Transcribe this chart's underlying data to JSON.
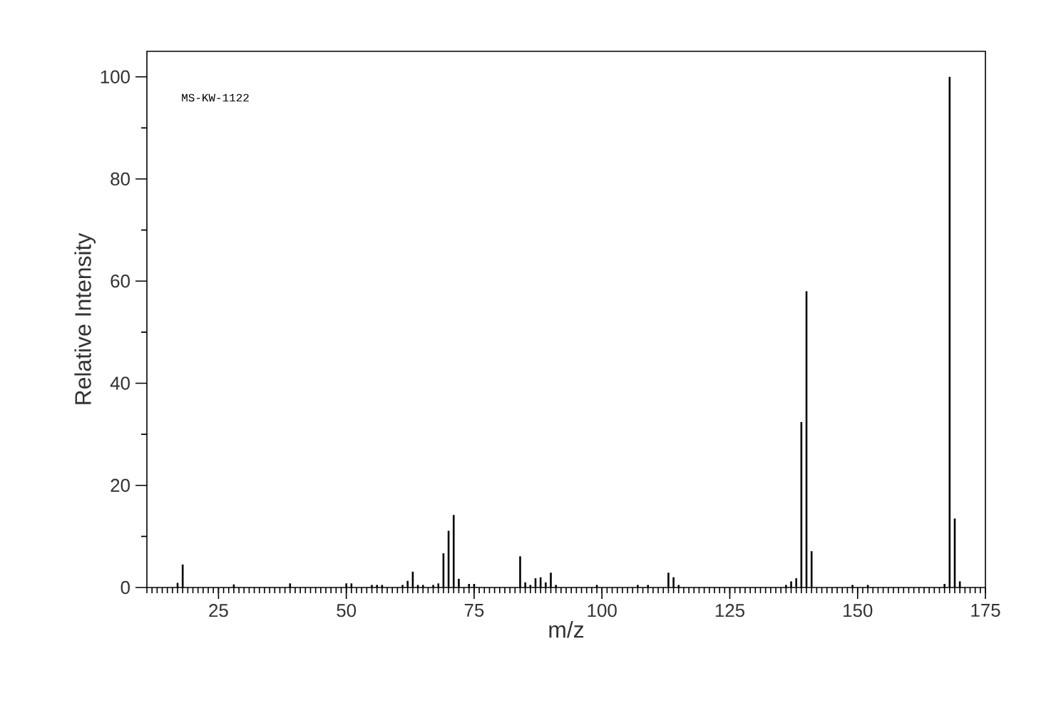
{
  "chart_data": {
    "type": "bar",
    "xlabel": "m/z",
    "ylabel": "Relative Intensity",
    "annotations": [
      "MS-KW-1122"
    ],
    "color": "#000000",
    "x": [
      17,
      18,
      28,
      39,
      50,
      51,
      55,
      56,
      57,
      61,
      62,
      63,
      64,
      65,
      67,
      68,
      69,
      70,
      71,
      72,
      74,
      75,
      84,
      85,
      86,
      87,
      88,
      89,
      90,
      91,
      99,
      107,
      109,
      113,
      114,
      115,
      136,
      137,
      138,
      139,
      140,
      141,
      149,
      152,
      167,
      168,
      169,
      170
    ],
    "values": [
      0.9,
      4.5,
      0.6,
      0.8,
      0.8,
      0.8,
      0.5,
      0.5,
      0.5,
      0.5,
      1.3,
      3.1,
      0.5,
      0.5,
      0.5,
      0.8,
      6.7,
      11.1,
      14.2,
      1.7,
      0.7,
      0.7,
      6.1,
      1.0,
      0.5,
      1.8,
      2.0,
      1.0,
      2.9,
      0.5,
      0.5,
      0.5,
      0.5,
      2.9,
      2.0,
      0.5,
      0.5,
      1.2,
      1.8,
      32.4,
      58.0,
      7.1,
      0.5,
      0.5,
      0.7,
      100,
      13.5,
      1.2
    ],
    "xlim": [
      11,
      175
    ],
    "ylim": [
      0,
      105
    ],
    "xticks": [
      25,
      50,
      75,
      100,
      125,
      150,
      175
    ],
    "yticks": [
      0,
      20,
      40,
      60,
      80,
      100
    ]
  }
}
